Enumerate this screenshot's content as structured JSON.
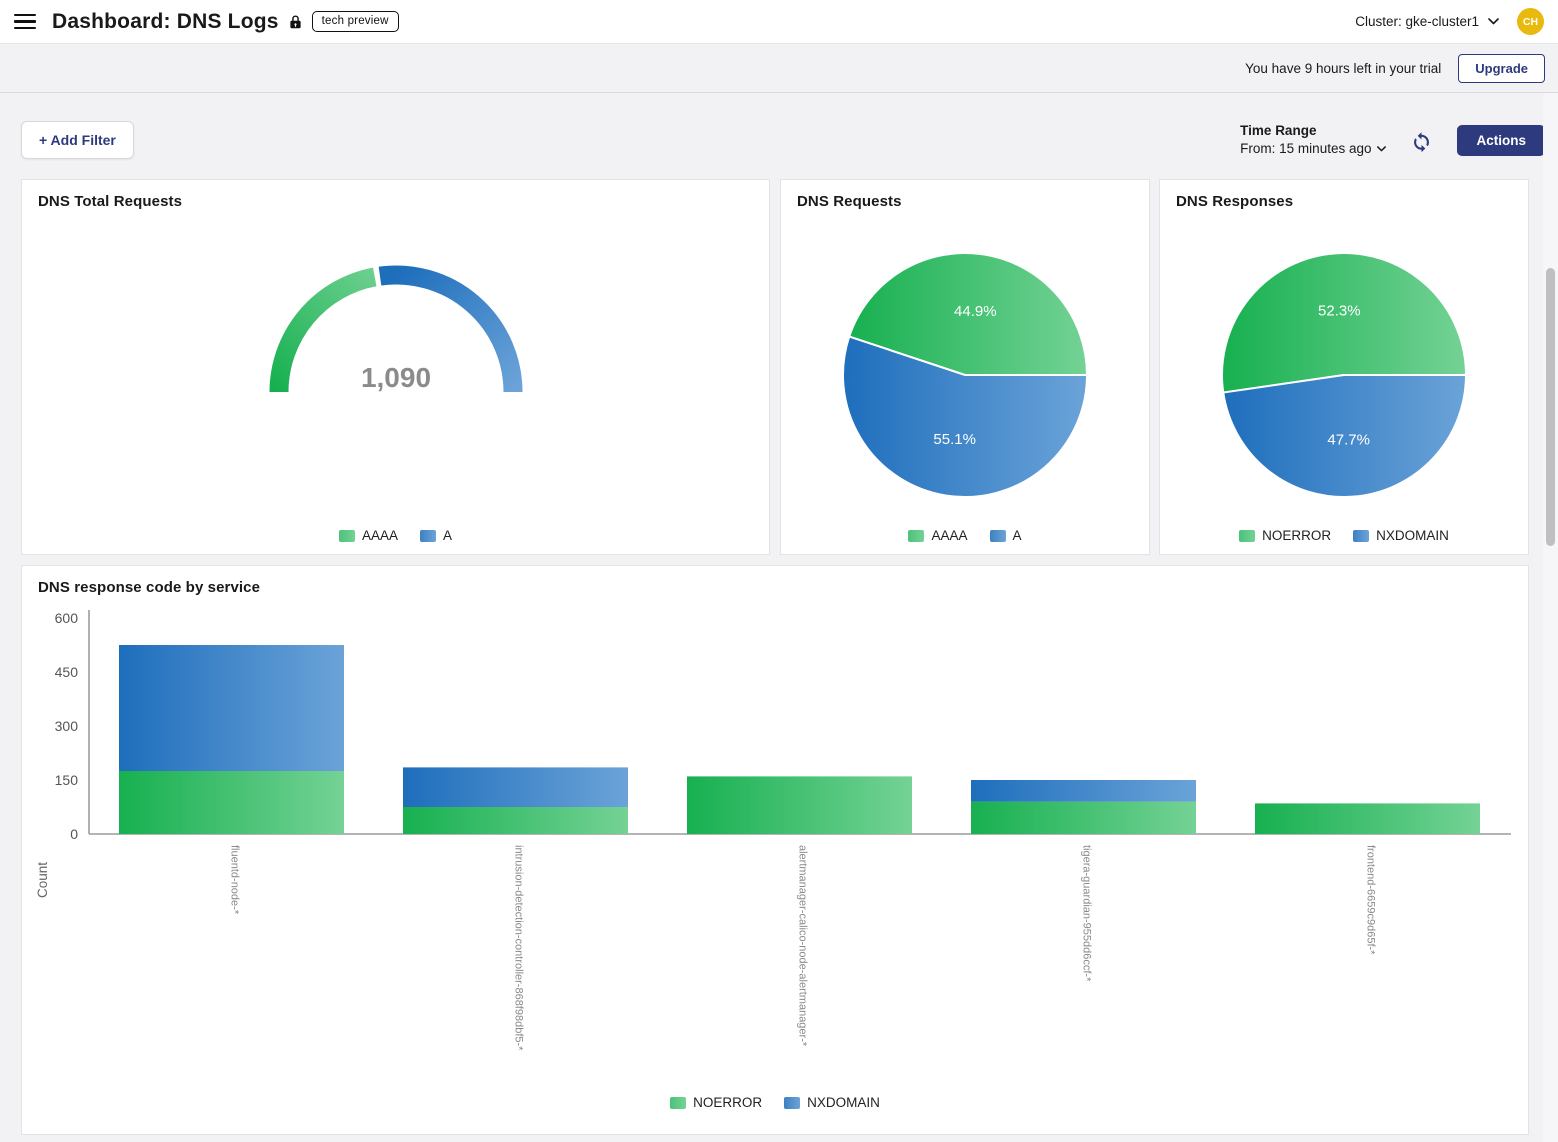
{
  "header": {
    "title": "Dashboard: DNS Logs",
    "badge": "tech preview",
    "cluster_label": "Cluster: gke-cluster1",
    "avatar_initials": "CH"
  },
  "banner": {
    "trial_text": "You have 9 hours left in your trial",
    "upgrade_label": "Upgrade"
  },
  "toolbar": {
    "add_filter_label": "+ Add Filter",
    "time_range_label": "Time Range",
    "time_range_value": "From: 15 minutes ago",
    "actions_label": "Actions"
  },
  "colors": {
    "accent": "#2d3a7d",
    "green_dark": "#17b050",
    "green_light": "#74d295",
    "blue_dark": "#1e6ebc",
    "blue_light": "#6ba3d8",
    "legend_green": "#4cc27a",
    "legend_blue": "#3e81c1",
    "avatar_bg": "#e9b90d",
    "value_gray": "#8b8b8b",
    "axis_gray": "#9c9c9c"
  },
  "chart_data": [
    {
      "type": "gauge",
      "title": "DNS Total Requests",
      "value": 1090,
      "value_label": "1,090",
      "segments": [
        {
          "label": "AAAA",
          "pct": 44.9,
          "color": "green"
        },
        {
          "label": "A",
          "pct": 55.1,
          "color": "blue"
        }
      ]
    },
    {
      "type": "pie",
      "title": "DNS Requests",
      "slices": [
        {
          "label": "AAAA",
          "pct": 44.9,
          "color": "green"
        },
        {
          "label": "A",
          "pct": 55.1,
          "color": "blue"
        }
      ]
    },
    {
      "type": "pie",
      "title": "DNS Responses",
      "slices": [
        {
          "label": "NOERROR",
          "pct": 52.3,
          "color": "green"
        },
        {
          "label": "NXDOMAIN",
          "pct": 47.7,
          "color": "blue"
        }
      ]
    },
    {
      "type": "bar",
      "title": "DNS response code by service",
      "ylabel": "Count",
      "ylim": [
        0,
        600
      ],
      "yticks": [
        0,
        150,
        300,
        450,
        600
      ],
      "legend_position": "bottom",
      "grid": false,
      "categories": [
        "fluentd-node-*",
        "intrusion-detection-controller-868f98dbf5-*",
        "alertmanager-calico-node-alertmanager-*",
        "tigera-guardian-955dd6ccf-*",
        "frontend-6659c9d65f-*"
      ],
      "series": [
        {
          "name": "NOERROR",
          "color": "green",
          "values": [
            175,
            75,
            160,
            90,
            85
          ]
        },
        {
          "name": "NXDOMAIN",
          "color": "blue",
          "values": [
            350,
            110,
            0,
            60,
            0
          ]
        }
      ]
    }
  ]
}
